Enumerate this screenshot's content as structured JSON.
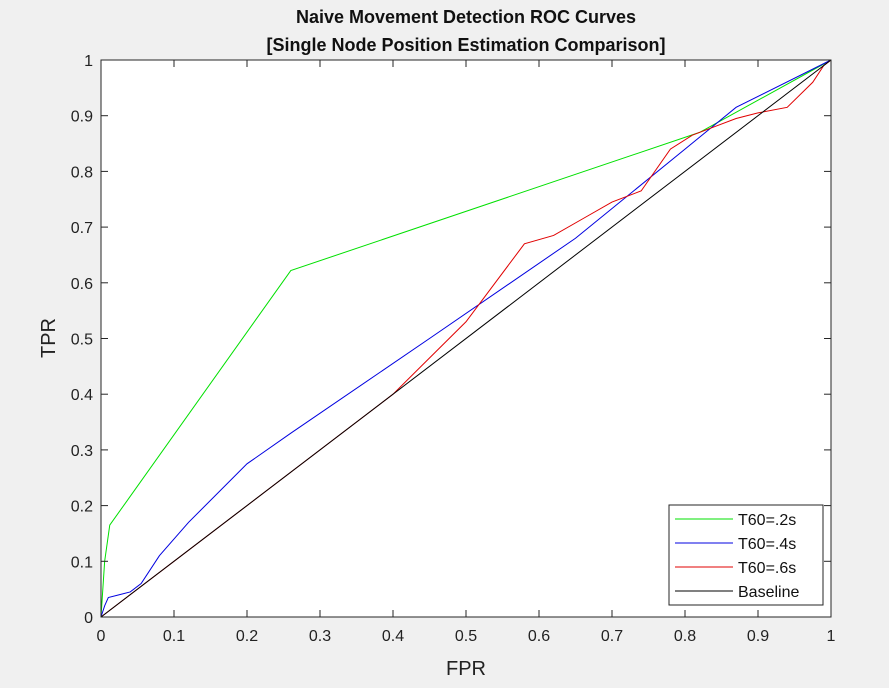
{
  "chart_data": {
    "type": "line",
    "title": "Naive Movement Detection ROC Curves",
    "subtitle": "[Single Node Position Estimation Comparison]",
    "xlabel": "FPR",
    "ylabel": "TPR",
    "xlim": [
      0,
      1
    ],
    "ylim": [
      0,
      1
    ],
    "xticks": [
      "0",
      "0.1",
      "0.2",
      "0.3",
      "0.4",
      "0.5",
      "0.6",
      "0.7",
      "0.8",
      "0.9",
      "1"
    ],
    "yticks": [
      "0",
      "0.1",
      "0.2",
      "0.3",
      "0.4",
      "0.5",
      "0.6",
      "0.7",
      "0.8",
      "0.9",
      "1"
    ],
    "grid": false,
    "legend_position": "bottom-right",
    "series": [
      {
        "name": "T60=.2s",
        "color": "#00e000",
        "x": [
          0,
          0.005,
          0.012,
          0.26,
          0.82,
          1
        ],
        "y": [
          0,
          0.1,
          0.165,
          0.622,
          0.87,
          1
        ]
      },
      {
        "name": "T60=.4s",
        "color": "#0000e0",
        "x": [
          0,
          0.005,
          0.01,
          0.025,
          0.04,
          0.055,
          0.08,
          0.12,
          0.2,
          0.26,
          0.45,
          0.65,
          0.8,
          0.87,
          1
        ],
        "y": [
          0,
          0.02,
          0.035,
          0.04,
          0.045,
          0.06,
          0.11,
          0.17,
          0.275,
          0.33,
          0.5,
          0.68,
          0.84,
          0.915,
          1
        ]
      },
      {
        "name": "T60=.6s",
        "color": "#e00000",
        "x": [
          0,
          0.05,
          0.1,
          0.2,
          0.3,
          0.4,
          0.5,
          0.58,
          0.62,
          0.66,
          0.7,
          0.74,
          0.78,
          0.81,
          0.84,
          0.87,
          0.9,
          0.94,
          0.975,
          0.99,
          1
        ],
        "y": [
          0,
          0.05,
          0.1,
          0.2,
          0.3,
          0.4,
          0.53,
          0.67,
          0.685,
          0.715,
          0.745,
          0.765,
          0.84,
          0.865,
          0.88,
          0.895,
          0.905,
          0.915,
          0.96,
          0.99,
          1
        ]
      },
      {
        "name": "Baseline",
        "color": "#000000",
        "x": [
          0,
          1
        ],
        "y": [
          0,
          1
        ]
      }
    ]
  }
}
